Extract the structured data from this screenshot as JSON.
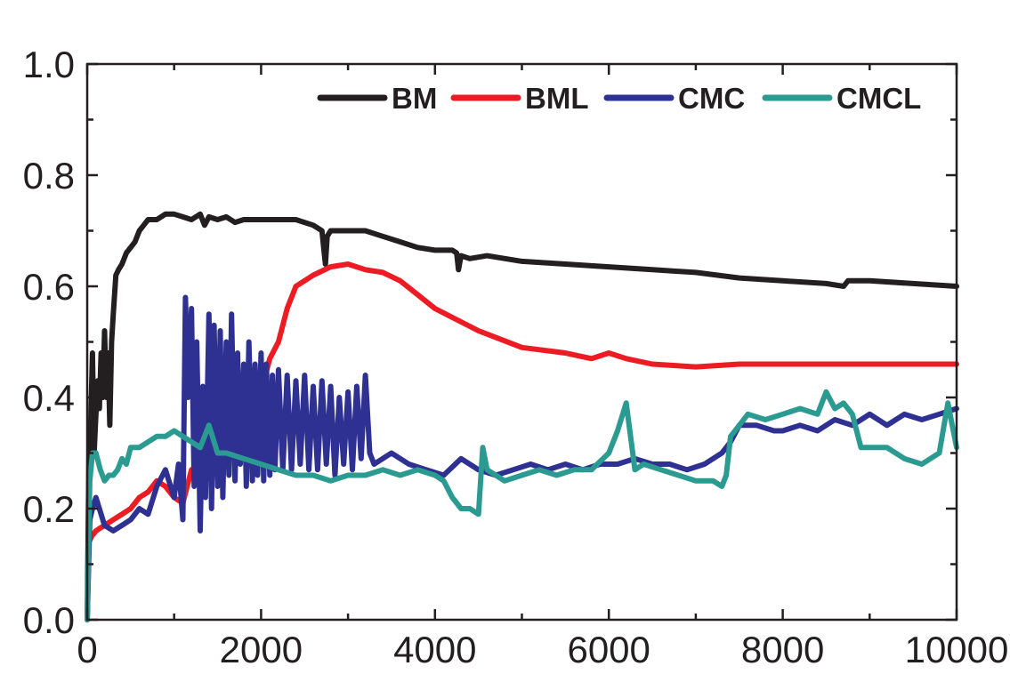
{
  "chart_data": {
    "type": "line",
    "title": "",
    "xlabel": "",
    "ylabel": "",
    "xlim": [
      0,
      10000
    ],
    "ylim": [
      0.0,
      1.0
    ],
    "x_ticks": [
      0,
      2000,
      4000,
      6000,
      8000,
      10000
    ],
    "x_tick_labels": [
      "0",
      "2000",
      "4000",
      "6000",
      "8000",
      "10000"
    ],
    "y_ticks": [
      0.0,
      0.2,
      0.4,
      0.6,
      0.8,
      1.0
    ],
    "y_tick_labels": [
      "0.0",
      "0.2",
      "0.4",
      "0.6",
      "0.8",
      "1.0"
    ],
    "grid": false,
    "legend_position": "top-right",
    "series": [
      {
        "name": "BM",
        "color": "#231f20",
        "x": [
          0,
          20,
          40,
          60,
          80,
          100,
          120,
          140,
          160,
          180,
          200,
          220,
          240,
          260,
          280,
          300,
          330,
          360,
          400,
          450,
          500,
          550,
          600,
          650,
          700,
          800,
          900,
          1000,
          1100,
          1200,
          1300,
          1350,
          1400,
          1500,
          1600,
          1700,
          1800,
          1900,
          2000,
          2200,
          2400,
          2600,
          2700,
          2720,
          2740,
          2760,
          2800,
          3000,
          3200,
          3400,
          3600,
          3800,
          4000,
          4200,
          4250,
          4270,
          4300,
          4400,
          4600,
          5000,
          5500,
          6000,
          6500,
          7000,
          7500,
          8000,
          8500,
          8700,
          8750,
          8800,
          9000,
          9500,
          10000
        ],
        "y": [
          0.0,
          0.3,
          0.35,
          0.48,
          0.3,
          0.37,
          0.43,
          0.38,
          0.48,
          0.4,
          0.52,
          0.4,
          0.48,
          0.35,
          0.5,
          0.55,
          0.62,
          0.63,
          0.64,
          0.66,
          0.67,
          0.68,
          0.7,
          0.71,
          0.72,
          0.72,
          0.73,
          0.73,
          0.725,
          0.72,
          0.73,
          0.71,
          0.725,
          0.72,
          0.725,
          0.715,
          0.72,
          0.72,
          0.72,
          0.72,
          0.72,
          0.71,
          0.7,
          0.67,
          0.64,
          0.69,
          0.7,
          0.7,
          0.7,
          0.69,
          0.68,
          0.67,
          0.665,
          0.665,
          0.66,
          0.63,
          0.655,
          0.65,
          0.655,
          0.645,
          0.64,
          0.635,
          0.63,
          0.625,
          0.615,
          0.61,
          0.605,
          0.6,
          0.61,
          0.61,
          0.61,
          0.605,
          0.6
        ]
      },
      {
        "name": "BML",
        "color": "#ed1c24",
        "x": [
          0,
          20,
          50,
          100,
          200,
          300,
          400,
          500,
          600,
          700,
          800,
          900,
          1000,
          1100,
          1200,
          1300,
          1400,
          1500,
          1600,
          1700,
          1800,
          1900,
          2000,
          2100,
          2200,
          2300,
          2400,
          2600,
          2800,
          3000,
          3200,
          3400,
          3600,
          3800,
          4000,
          4500,
          5000,
          5500,
          5800,
          6000,
          6200,
          6500,
          7000,
          7500,
          8000,
          8500,
          9000,
          9500,
          10000
        ],
        "y": [
          0.0,
          0.14,
          0.15,
          0.16,
          0.17,
          0.18,
          0.19,
          0.2,
          0.22,
          0.23,
          0.25,
          0.24,
          0.22,
          0.21,
          0.27,
          0.24,
          0.3,
          0.33,
          0.35,
          0.37,
          0.38,
          0.39,
          0.41,
          0.47,
          0.5,
          0.56,
          0.6,
          0.62,
          0.635,
          0.64,
          0.63,
          0.625,
          0.61,
          0.585,
          0.56,
          0.52,
          0.49,
          0.48,
          0.47,
          0.48,
          0.47,
          0.46,
          0.455,
          0.46,
          0.46,
          0.46,
          0.46,
          0.46,
          0.46
        ]
      },
      {
        "name": "CMC",
        "color": "#2e3192",
        "x": [
          0,
          30,
          60,
          100,
          200,
          300,
          400,
          500,
          600,
          700,
          800,
          900,
          1000,
          1050,
          1100,
          1130,
          1160,
          1200,
          1230,
          1260,
          1300,
          1330,
          1360,
          1400,
          1430,
          1460,
          1500,
          1530,
          1560,
          1600,
          1630,
          1660,
          1700,
          1730,
          1760,
          1800,
          1830,
          1860,
          1900,
          1930,
          1960,
          2000,
          2030,
          2060,
          2100,
          2130,
          2160,
          2200,
          2250,
          2300,
          2350,
          2400,
          2450,
          2500,
          2550,
          2600,
          2650,
          2700,
          2750,
          2800,
          2850,
          2900,
          2950,
          3000,
          3050,
          3100,
          3150,
          3200,
          3250,
          3300,
          3500,
          3700,
          3900,
          4100,
          4300,
          4500,
          4700,
          4900,
          5100,
          5300,
          5500,
          5700,
          5900,
          6100,
          6300,
          6500,
          6700,
          6900,
          7100,
          7300,
          7400,
          7500,
          7700,
          7900,
          8000,
          8200,
          8400,
          8600,
          8800,
          9000,
          9200,
          9400,
          9600,
          9800,
          10000
        ],
        "y": [
          0.0,
          0.18,
          0.2,
          0.22,
          0.17,
          0.16,
          0.17,
          0.18,
          0.2,
          0.19,
          0.24,
          0.27,
          0.22,
          0.28,
          0.18,
          0.58,
          0.4,
          0.56,
          0.24,
          0.5,
          0.16,
          0.42,
          0.22,
          0.55,
          0.2,
          0.53,
          0.24,
          0.52,
          0.22,
          0.5,
          0.26,
          0.55,
          0.25,
          0.48,
          0.28,
          0.46,
          0.24,
          0.5,
          0.25,
          0.46,
          0.26,
          0.48,
          0.25,
          0.46,
          0.26,
          0.44,
          0.27,
          0.45,
          0.27,
          0.44,
          0.27,
          0.43,
          0.28,
          0.44,
          0.27,
          0.42,
          0.27,
          0.43,
          0.28,
          0.42,
          0.26,
          0.4,
          0.28,
          0.41,
          0.27,
          0.42,
          0.29,
          0.44,
          0.3,
          0.28,
          0.3,
          0.28,
          0.27,
          0.26,
          0.29,
          0.27,
          0.26,
          0.27,
          0.28,
          0.27,
          0.28,
          0.27,
          0.28,
          0.28,
          0.29,
          0.28,
          0.28,
          0.27,
          0.28,
          0.3,
          0.32,
          0.35,
          0.35,
          0.34,
          0.34,
          0.35,
          0.34,
          0.36,
          0.35,
          0.37,
          0.35,
          0.37,
          0.36,
          0.37,
          0.38
        ]
      },
      {
        "name": "CMCL",
        "color": "#2b9a91",
        "x": [
          0,
          30,
          60,
          100,
          150,
          200,
          250,
          300,
          350,
          400,
          450,
          500,
          600,
          700,
          800,
          900,
          1000,
          1100,
          1200,
          1300,
          1400,
          1500,
          1600,
          1800,
          2000,
          2200,
          2400,
          2600,
          2800,
          3000,
          3200,
          3400,
          3600,
          3800,
          4000,
          4100,
          4200,
          4300,
          4400,
          4500,
          4550,
          4600,
          4800,
          5000,
          5200,
          5400,
          5600,
          5800,
          6000,
          6100,
          6200,
          6250,
          6300,
          6400,
          6600,
          6800,
          7000,
          7200,
          7300,
          7350,
          7400,
          7500,
          7600,
          7800,
          8000,
          8200,
          8400,
          8500,
          8600,
          8700,
          8800,
          8900,
          9000,
          9200,
          9400,
          9600,
          9800,
          9900,
          10000
        ],
        "y": [
          0.0,
          0.25,
          0.3,
          0.3,
          0.27,
          0.25,
          0.26,
          0.26,
          0.27,
          0.29,
          0.28,
          0.31,
          0.31,
          0.32,
          0.33,
          0.33,
          0.34,
          0.33,
          0.32,
          0.31,
          0.35,
          0.3,
          0.3,
          0.29,
          0.28,
          0.27,
          0.26,
          0.26,
          0.25,
          0.26,
          0.26,
          0.27,
          0.26,
          0.27,
          0.26,
          0.25,
          0.22,
          0.2,
          0.2,
          0.19,
          0.31,
          0.27,
          0.25,
          0.26,
          0.27,
          0.26,
          0.27,
          0.27,
          0.3,
          0.34,
          0.39,
          0.33,
          0.27,
          0.28,
          0.27,
          0.26,
          0.25,
          0.25,
          0.24,
          0.26,
          0.33,
          0.35,
          0.37,
          0.36,
          0.37,
          0.38,
          0.37,
          0.41,
          0.38,
          0.39,
          0.37,
          0.31,
          0.31,
          0.31,
          0.29,
          0.28,
          0.3,
          0.39,
          0.31
        ]
      }
    ]
  }
}
